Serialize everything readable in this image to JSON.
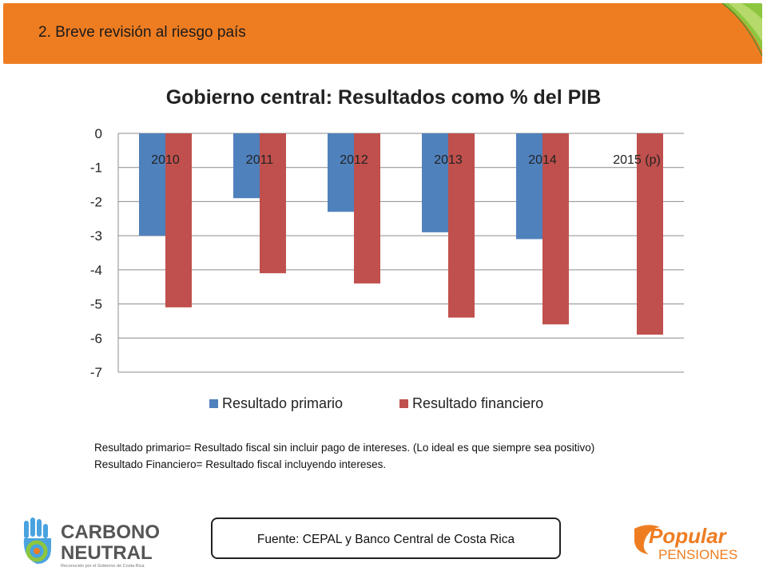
{
  "header": {
    "title": "2. Breve revisión al riesgo país"
  },
  "chart_data": {
    "type": "bar",
    "title": "Gobierno central: Resultados como % del PIB",
    "categories": [
      "2010",
      "2011",
      "2012",
      "2013",
      "2014",
      "2015 (p)"
    ],
    "series": [
      {
        "name": "Resultado primario",
        "values": [
          -3.0,
          -1.9,
          -2.3,
          -2.9,
          -3.1,
          null
        ],
        "color": "#4f81bd"
      },
      {
        "name": "Resultado financiero",
        "values": [
          -5.1,
          -4.1,
          -4.4,
          -5.4,
          -5.6,
          -5.9
        ],
        "color": "#c0504d"
      }
    ],
    "ylim": [
      -7,
      0
    ],
    "yticks": [
      "0",
      "-1",
      "-2",
      "-3",
      "-4",
      "-5",
      "-6",
      "-7"
    ],
    "grid": true,
    "legend": "bottom"
  },
  "notes": {
    "line1": "Resultado primario= Resultado fiscal sin incluir pago de intereses. (Lo ideal es que siempre sea positivo)",
    "line2": "Resultado Financiero= Resultado fiscal incluyendo intereses."
  },
  "source": "Fuente: CEPAL y Banco Central de Costa Rica",
  "logos": {
    "left_line1": "CARBONO",
    "left_line2": "NEUTRAL",
    "left_small": "Reconocido por el Gobierno de Costa Rica",
    "right_line1": "Popular",
    "right_line2": "PENSIONES",
    "right_color": "#ee7d22"
  }
}
